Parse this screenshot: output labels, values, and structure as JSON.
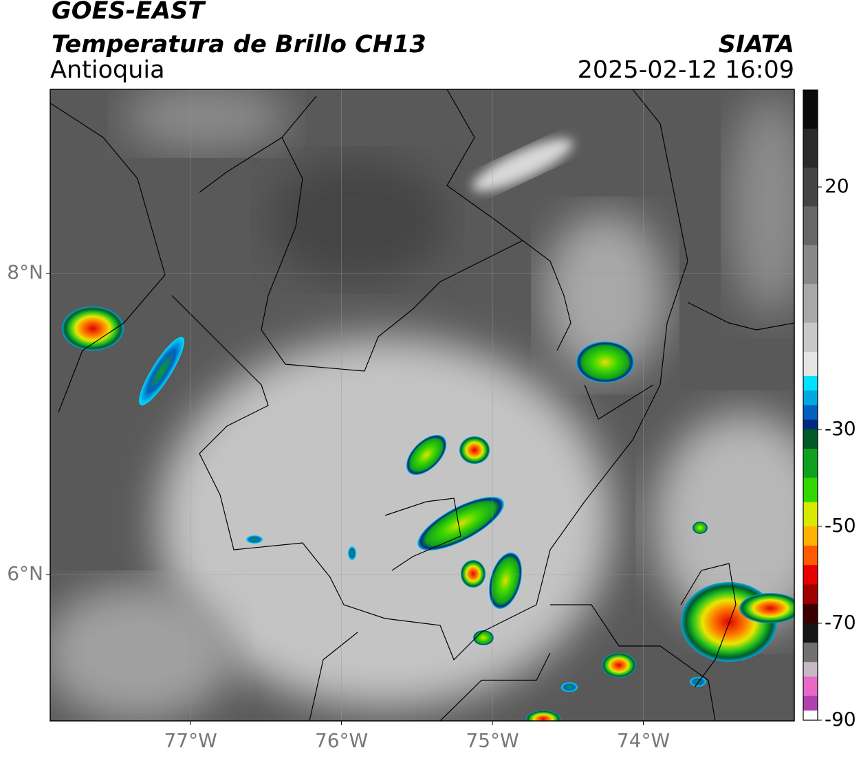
{
  "header": {
    "title": "GOES-EAST",
    "subtitle": "Temperatura de Brillo CH13",
    "region": "Antioquia",
    "source": "SIATA",
    "datetime": "2025-02-12 16:09"
  },
  "map": {
    "xlim": [
      -77.93,
      -73.0
    ],
    "ylim": [
      5.03,
      9.22
    ],
    "xticks": [
      {
        "value": -77,
        "label": "77°W"
      },
      {
        "value": -76,
        "label": "76°W"
      },
      {
        "value": -75,
        "label": "75°W"
      },
      {
        "value": -74,
        "label": "74°W"
      }
    ],
    "yticks": [
      {
        "value": 8,
        "label": "8°N"
      },
      {
        "value": 6,
        "label": "6°N"
      }
    ],
    "grid": true
  },
  "colorbar": {
    "range": [
      -90,
      40
    ],
    "ticks": [
      20,
      -30,
      -50,
      -70,
      -90
    ],
    "stops": [
      {
        "value": 40,
        "color": "#0a0a0a"
      },
      {
        "value": 32,
        "color": "#2a2a2a"
      },
      {
        "value": 24,
        "color": "#444444"
      },
      {
        "value": 16,
        "color": "#666666"
      },
      {
        "value": 8,
        "color": "#888888"
      },
      {
        "value": 0,
        "color": "#a8a8a8"
      },
      {
        "value": -8,
        "color": "#c8c8c8"
      },
      {
        "value": -14,
        "color": "#e4e4e4"
      },
      {
        "value": -19,
        "color": "#00e0ff"
      },
      {
        "value": -22,
        "color": "#00a8e0"
      },
      {
        "value": -25,
        "color": "#0060c0"
      },
      {
        "value": -28,
        "color": "#002a80"
      },
      {
        "value": -30,
        "color": "#005a28"
      },
      {
        "value": -34,
        "color": "#10a020"
      },
      {
        "value": -40,
        "color": "#30d800"
      },
      {
        "value": -45,
        "color": "#d8e800"
      },
      {
        "value": -50,
        "color": "#ffb000"
      },
      {
        "value": -54,
        "color": "#ff5a00"
      },
      {
        "value": -58,
        "color": "#e80000"
      },
      {
        "value": -62,
        "color": "#a00000"
      },
      {
        "value": -66,
        "color": "#3a0000"
      },
      {
        "value": -70,
        "color": "#151515"
      },
      {
        "value": -74,
        "color": "#707070"
      },
      {
        "value": -78,
        "color": "#c8b8c4"
      },
      {
        "value": -81,
        "color": "#e868c8"
      },
      {
        "value": -85,
        "color": "#b040b0"
      },
      {
        "value": -88,
        "color": "#ffffff"
      }
    ]
  }
}
